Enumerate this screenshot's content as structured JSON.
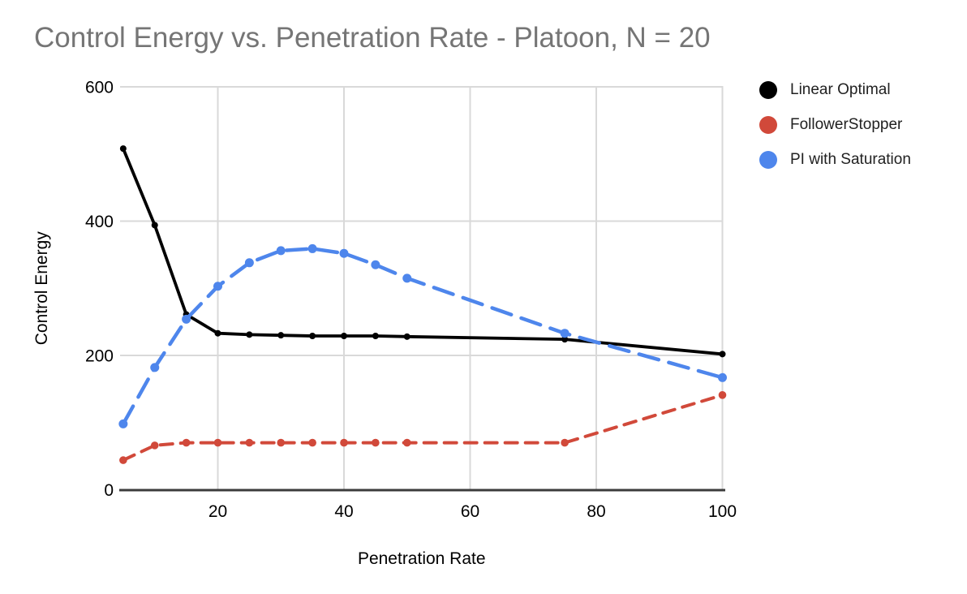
{
  "chart_data": {
    "type": "line",
    "title": "Control Energy vs. Penetration Rate - Platoon, N = 20",
    "title_color": "#757575",
    "xlabel": "Penetration Rate",
    "ylabel": "Control Energy",
    "x": [
      5,
      10,
      15,
      20,
      25,
      30,
      35,
      40,
      45,
      50,
      75,
      100
    ],
    "series": [
      {
        "name": "Linear Optimal",
        "color": "#000000",
        "dash": "solid",
        "values": [
          508,
          394,
          261,
          233,
          231,
          230,
          229,
          229,
          229,
          228,
          224,
          202
        ]
      },
      {
        "name": "FollowerStopper",
        "color": "#d1493a",
        "dash": "dashed",
        "values": [
          44,
          66,
          70,
          70,
          70,
          70,
          70,
          70,
          70,
          70,
          70,
          141
        ]
      },
      {
        "name": "PI with Saturation",
        "color": "#4e86ec",
        "dash": "long-dashed",
        "values": [
          98,
          182,
          254,
          303,
          338,
          356,
          359,
          352,
          335,
          315,
          233,
          167
        ]
      }
    ],
    "x_ticks": [
      20,
      40,
      60,
      80,
      100
    ],
    "y_ticks": [
      0,
      200,
      400,
      600
    ],
    "xlim": [
      4.5,
      100
    ],
    "ylim": [
      0,
      600
    ],
    "grid": true,
    "gridline_color": "#d9d9d9",
    "axis_line_color": "#3c3c3c",
    "legend_position": "top-right"
  }
}
